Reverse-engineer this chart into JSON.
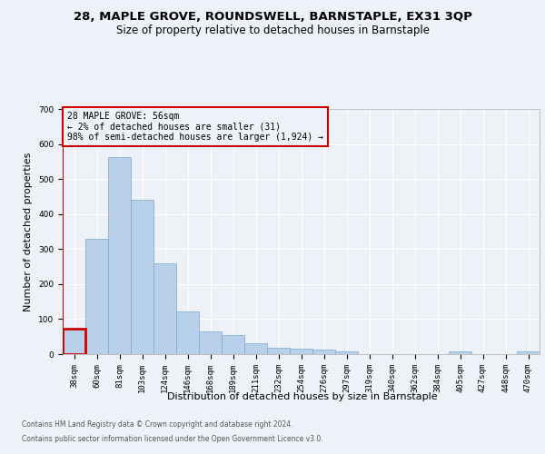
{
  "title_line1": "28, MAPLE GROVE, ROUNDSWELL, BARNSTAPLE, EX31 3QP",
  "title_line2": "Size of property relative to detached houses in Barnstaple",
  "xlabel": "Distribution of detached houses by size in Barnstaple",
  "ylabel": "Number of detached properties",
  "categories": [
    "38sqm",
    "60sqm",
    "81sqm",
    "103sqm",
    "124sqm",
    "146sqm",
    "168sqm",
    "189sqm",
    "211sqm",
    "232sqm",
    "254sqm",
    "276sqm",
    "297sqm",
    "319sqm",
    "340sqm",
    "362sqm",
    "384sqm",
    "405sqm",
    "427sqm",
    "448sqm",
    "470sqm"
  ],
  "values": [
    72,
    330,
    563,
    440,
    258,
    122,
    65,
    55,
    32,
    17,
    15,
    13,
    8,
    0,
    0,
    0,
    0,
    7,
    0,
    0,
    7
  ],
  "bar_color": "#b8d0ea",
  "bar_edgecolor": "#7aaad0",
  "highlight_edgecolor": "#cc0000",
  "annotation_text": "28 MAPLE GROVE: 56sqm\n← 2% of detached houses are smaller (31)\n98% of semi-detached houses are larger (1,924) →",
  "annotation_box_edgecolor": "#cc0000",
  "footer_line1": "Contains HM Land Registry data © Crown copyright and database right 2024.",
  "footer_line2": "Contains public sector information licensed under the Open Government Licence v3.0.",
  "ylim_max": 700,
  "yticks": [
    0,
    100,
    200,
    300,
    400,
    500,
    600,
    700
  ],
  "bg_color": "#eef2f8",
  "grid_color": "#ffffff",
  "title_fontsize": 9.5,
  "subtitle_fontsize": 8.5,
  "axis_label_fontsize": 8,
  "tick_fontsize": 6.5,
  "footer_fontsize": 5.5
}
